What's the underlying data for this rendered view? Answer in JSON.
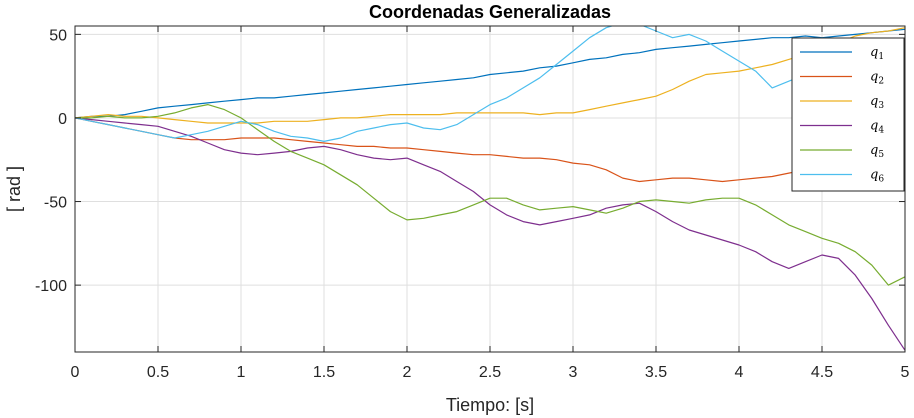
{
  "chart_data": {
    "type": "line",
    "title": "Coordenadas Generalizadas",
    "xlabel": "Tiempo: [s]",
    "ylabel": "[ rad ]",
    "xlim": [
      0,
      5
    ],
    "ylim": [
      -140,
      55
    ],
    "xticks": [
      0,
      0.5,
      1,
      1.5,
      2,
      2.5,
      3,
      3.5,
      4,
      4.5,
      5
    ],
    "xtick_labels": [
      "0",
      "0.5",
      "1",
      "1.5",
      "2",
      "2.5",
      "3",
      "3.5",
      "4",
      "4.5",
      "5"
    ],
    "yticks": [
      50,
      0,
      -50,
      -100
    ],
    "ytick_labels": [
      "50",
      "0",
      "-50",
      "-100"
    ],
    "grid": true,
    "legend_position": "top-right",
    "x": [
      0,
      0.1,
      0.2,
      0.3,
      0.4,
      0.5,
      0.6,
      0.7,
      0.8,
      0.9,
      1.0,
      1.1,
      1.2,
      1.3,
      1.4,
      1.5,
      1.6,
      1.7,
      1.8,
      1.9,
      2.0,
      2.1,
      2.2,
      2.3,
      2.4,
      2.5,
      2.6,
      2.7,
      2.8,
      2.9,
      3.0,
      3.1,
      3.2,
      3.3,
      3.4,
      3.5,
      3.6,
      3.7,
      3.8,
      3.9,
      4.0,
      4.1,
      4.2,
      4.3,
      4.4,
      4.5,
      4.6,
      4.7,
      4.8,
      4.9,
      5.0
    ],
    "series": [
      {
        "name": "q",
        "sub": "1",
        "color": "#0072BD",
        "values": [
          0,
          1,
          1,
          2,
          4,
          6,
          7,
          8,
          9,
          10,
          11,
          12,
          12,
          13,
          14,
          15,
          16,
          17,
          18,
          19,
          20,
          21,
          22,
          23,
          24,
          26,
          27,
          28,
          30,
          31,
          33,
          35,
          36,
          38,
          39,
          41,
          42,
          43,
          44,
          45,
          46,
          47,
          48,
          48,
          49,
          48,
          49,
          50,
          51,
          52,
          53
        ]
      },
      {
        "name": "q",
        "sub": "2",
        "color": "#D95319",
        "values": [
          0,
          -2,
          -4,
          -6,
          -8,
          -10,
          -12,
          -13,
          -13,
          -13,
          -12,
          -12,
          -12,
          -13,
          -14,
          -15,
          -16,
          -17,
          -17,
          -18,
          -18,
          -19,
          -20,
          -21,
          -22,
          -22,
          -23,
          -24,
          -24,
          -25,
          -27,
          -28,
          -31,
          -36,
          -38,
          -37,
          -36,
          -36,
          -37,
          -38,
          -37,
          -36,
          -35,
          -33,
          -31,
          -30,
          -30,
          -32,
          -34,
          -36,
          -36
        ]
      },
      {
        "name": "q",
        "sub": "3",
        "color": "#EDB120",
        "values": [
          0,
          1,
          2,
          1,
          1,
          0,
          -1,
          -2,
          -3,
          -3,
          -3,
          -3,
          -2,
          -2,
          -2,
          -1,
          0,
          0,
          1,
          2,
          2,
          2,
          2,
          3,
          3,
          3,
          3,
          3,
          2,
          3,
          3,
          5,
          7,
          9,
          11,
          13,
          17,
          22,
          26,
          27,
          28,
          30,
          32,
          35,
          38,
          42,
          45,
          49,
          51,
          52,
          54
        ]
      },
      {
        "name": "q",
        "sub": "4",
        "color": "#7E2F8E",
        "values": [
          0,
          -1,
          -2,
          -3,
          -4,
          -5,
          -8,
          -11,
          -15,
          -19,
          -21,
          -22,
          -21,
          -20,
          -18,
          -17,
          -19,
          -22,
          -24,
          -25,
          -24,
          -28,
          -32,
          -38,
          -44,
          -52,
          -58,
          -62,
          -64,
          -62,
          -60,
          -58,
          -54,
          -52,
          -51,
          -56,
          -62,
          -67,
          -70,
          -73,
          -76,
          -80,
          -86,
          -90,
          -86,
          -82,
          -84,
          -94,
          -108,
          -124,
          -139
        ]
      },
      {
        "name": "q",
        "sub": "5",
        "color": "#77AC30",
        "values": [
          0,
          0,
          1,
          0,
          0,
          1,
          3,
          6,
          8,
          5,
          0,
          -7,
          -14,
          -20,
          -24,
          -28,
          -34,
          -40,
          -48,
          -56,
          -61,
          -60,
          -58,
          -56,
          -52,
          -48,
          -48,
          -52,
          -55,
          -54,
          -53,
          -55,
          -57,
          -54,
          -50,
          -49,
          -50,
          -51,
          -49,
          -48,
          -48,
          -52,
          -58,
          -64,
          -68,
          -72,
          -75,
          -80,
          -88,
          -100,
          -95
        ]
      },
      {
        "name": "q",
        "sub": "6",
        "color": "#4DBEEE",
        "values": [
          0,
          -2,
          -4,
          -6,
          -8,
          -10,
          -12,
          -10,
          -8,
          -5,
          -2,
          -4,
          -8,
          -11,
          -12,
          -14,
          -12,
          -8,
          -6,
          -4,
          -3,
          -6,
          -7,
          -4,
          2,
          8,
          12,
          18,
          24,
          32,
          40,
          48,
          54,
          57,
          56,
          52,
          48,
          50,
          46,
          40,
          34,
          28,
          18,
          22,
          26,
          24,
          28,
          32,
          38,
          10,
          -35
        ]
      }
    ]
  }
}
